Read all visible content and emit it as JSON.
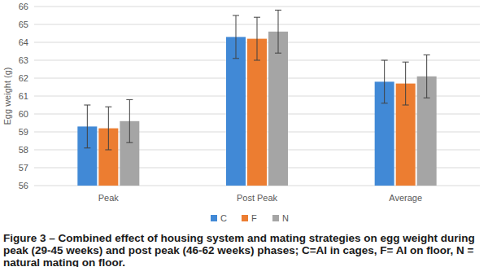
{
  "chart_data": {
    "type": "bar",
    "title": "Figure 3 – Combined effect of housing system and mating strategies on egg weight during peak (29-45 weeks) and post peak (46-62 weeks) phases; C=AI in cages, F= AI on floor, N = natural mating on floor.",
    "y_label": "Egg weight (g)",
    "categories": [
      "Peak",
      "Post Peak",
      "Average"
    ],
    "series": [
      {
        "name": "C",
        "color": "#4189d6",
        "values": [
          59.3,
          64.3,
          61.8
        ],
        "errors": [
          1.2,
          1.2,
          1.2
        ]
      },
      {
        "name": "F",
        "color": "#ec7d31",
        "values": [
          59.2,
          64.2,
          61.7
        ],
        "errors": [
          1.2,
          1.2,
          1.2
        ]
      },
      {
        "name": "N",
        "color": "#a5a5a5",
        "values": [
          59.6,
          64.6,
          62.1
        ],
        "errors": [
          1.2,
          1.2,
          1.2
        ]
      }
    ],
    "ylim": [
      56,
      66
    ],
    "yticks": [
      56,
      57,
      58,
      59,
      60,
      61,
      62,
      63,
      64,
      65,
      66
    ],
    "grid": true,
    "legend": "bottom"
  }
}
